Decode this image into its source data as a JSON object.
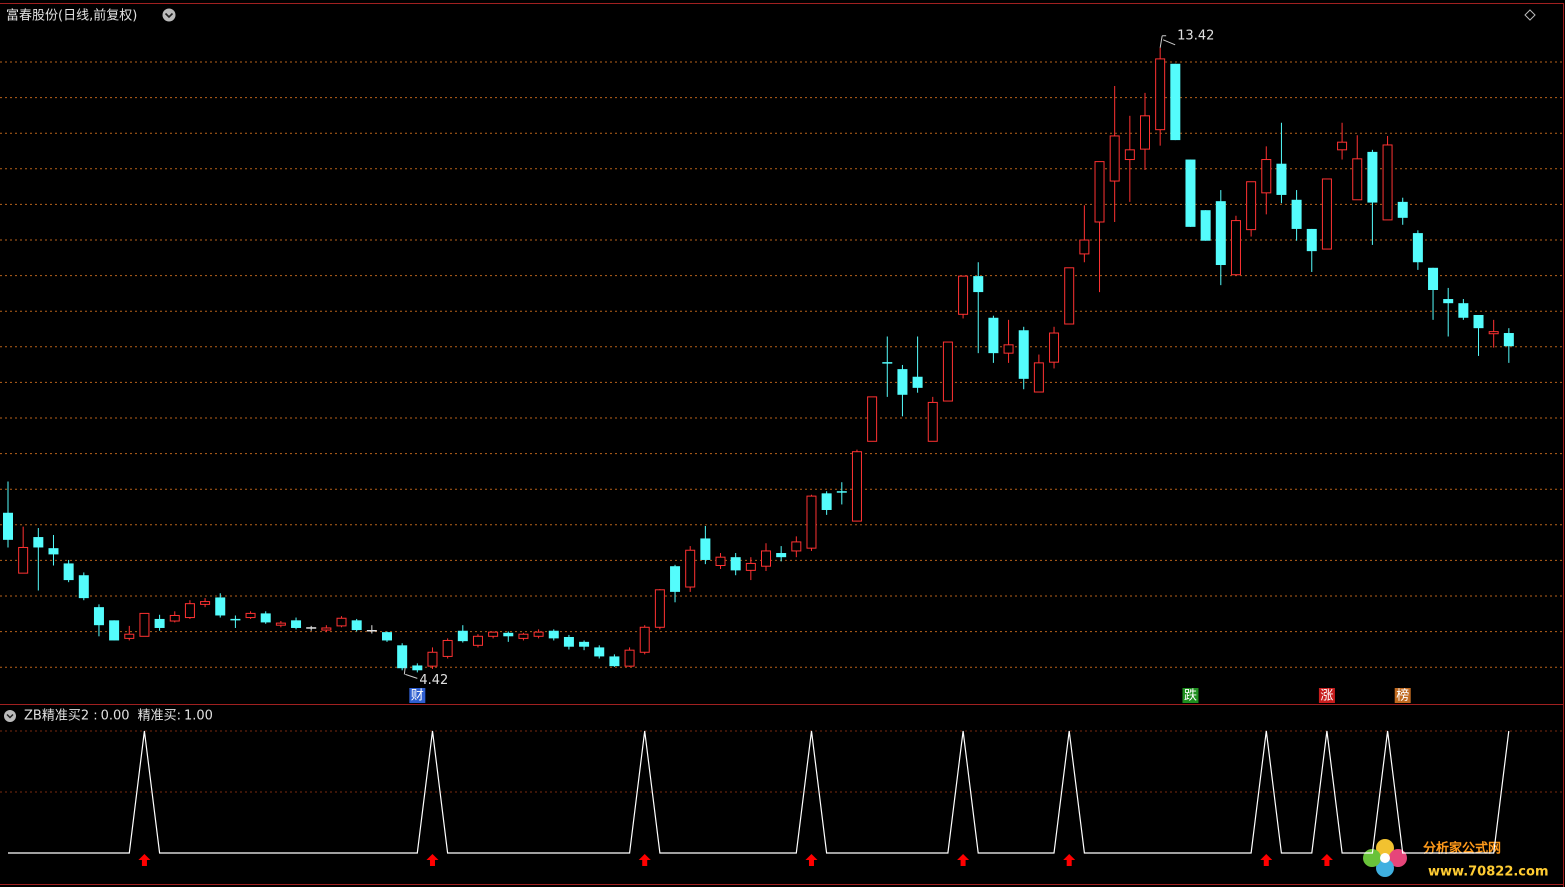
{
  "chart_data": [
    {
      "type": "candlestick",
      "title": "富春股份(日线,前复权)",
      "ylim": [
        3.95,
        14.08
      ],
      "grid": true,
      "up_color": "#ff3232",
      "down_color": "#54fcfc",
      "flat_color": "#e0e0e0",
      "open": [
        6.72,
        5.85,
        6.37,
        6.21,
        5.99,
        5.82,
        5.36,
        5.17,
        4.91,
        4.94,
        5.19,
        5.16,
        5.21,
        5.4,
        5.5,
        5.18,
        5.21,
        5.27,
        5.1,
        5.17,
        5.06,
        5.03,
        5.09,
        5.17,
        5.02,
        5.0,
        4.81,
        4.52,
        4.51,
        4.65,
        5.02,
        4.81,
        4.94,
        4.99,
        4.91,
        4.94,
        5.02,
        4.93,
        4.86,
        4.78,
        4.65,
        4.51,
        4.71,
        5.07,
        5.95,
        5.65,
        6.35,
        5.96,
        6.08,
        5.89,
        5.95,
        6.14,
        6.17,
        6.21,
        7.0,
        7.02,
        6.6,
        7.75,
        8.88,
        8.79,
        8.68,
        7.75,
        8.33,
        9.58,
        10.13,
        9.53,
        9.02,
        9.35,
        8.46,
        8.89,
        9.44,
        10.45,
        10.91,
        11.5,
        11.81,
        11.96,
        12.24,
        13.19,
        11.81,
        11.08,
        11.21,
        10.15,
        10.8,
        11.33,
        11.75,
        11.23,
        10.81,
        10.52,
        11.95,
        11.23,
        11.92,
        10.94,
        11.2,
        10.75,
        10.25,
        9.8,
        9.74,
        9.57,
        9.3,
        9.31
      ],
      "close": [
        6.33,
        6.22,
        6.22,
        6.12,
        5.75,
        5.49,
        5.1,
        4.88,
        4.97,
        5.27,
        5.06,
        5.24,
        5.41,
        5.44,
        5.24,
        5.16,
        5.27,
        5.14,
        5.13,
        5.06,
        5.06,
        5.06,
        5.2,
        5.03,
        5.02,
        4.88,
        4.48,
        4.45,
        4.71,
        4.88,
        4.87,
        4.94,
        5.0,
        4.94,
        4.97,
        5.0,
        4.91,
        4.79,
        4.79,
        4.65,
        4.51,
        4.74,
        5.07,
        5.61,
        5.58,
        6.18,
        6.04,
        6.08,
        5.89,
        5.99,
        6.17,
        6.08,
        6.3,
        6.96,
        6.76,
        7.0,
        7.6,
        8.39,
        8.86,
        8.42,
        8.52,
        8.31,
        9.18,
        10.13,
        9.9,
        9.02,
        9.14,
        8.65,
        8.88,
        9.31,
        10.25,
        10.65,
        11.78,
        12.15,
        11.95,
        12.44,
        13.26,
        12.09,
        10.84,
        10.64,
        10.29,
        10.93,
        11.49,
        11.81,
        11.3,
        10.81,
        10.49,
        11.53,
        12.06,
        11.82,
        11.19,
        12.02,
        10.97,
        10.33,
        9.93,
        9.74,
        9.53,
        9.38,
        9.33,
        9.12
      ],
      "high": [
        7.17,
        6.52,
        6.5,
        6.4,
        6.04,
        5.86,
        5.4,
        5.17,
        5.09,
        5.27,
        5.25,
        5.3,
        5.46,
        5.49,
        5.56,
        5.24,
        5.3,
        5.3,
        5.16,
        5.21,
        5.09,
        5.1,
        5.23,
        5.19,
        5.1,
        5.01,
        4.84,
        4.55,
        4.78,
        4.91,
        5.1,
        4.97,
        5.01,
        5.01,
        4.99,
        5.04,
        5.04,
        4.96,
        4.88,
        4.81,
        4.68,
        4.78,
        5.1,
        5.62,
        5.97,
        6.24,
        6.53,
        6.14,
        6.14,
        6.08,
        6.28,
        6.24,
        6.38,
        6.98,
        7.03,
        7.16,
        7.63,
        8.39,
        9.26,
        8.85,
        9.26,
        8.39,
        9.18,
        10.13,
        10.33,
        9.56,
        9.5,
        9.4,
        9.0,
        9.4,
        10.25,
        11.15,
        11.78,
        12.87,
        12.44,
        12.77,
        13.42,
        13.19,
        11.81,
        11.08,
        11.37,
        11.0,
        11.49,
        12.0,
        12.34,
        11.37,
        10.81,
        11.53,
        12.34,
        12.16,
        11.95,
        12.15,
        11.26,
        10.79,
        10.25,
        9.96,
        9.8,
        9.57,
        9.5,
        9.38
      ],
      "low": [
        6.22,
        5.85,
        5.6,
        5.96,
        5.72,
        5.46,
        4.94,
        4.88,
        4.88,
        4.94,
        5.02,
        5.14,
        5.19,
        5.36,
        5.21,
        5.06,
        5.19,
        5.12,
        5.07,
        5.04,
        5.02,
        5.0,
        5.07,
        5.01,
        4.98,
        4.86,
        4.45,
        4.42,
        4.47,
        4.62,
        4.85,
        4.78,
        4.91,
        4.86,
        4.88,
        4.91,
        4.88,
        4.75,
        4.74,
        4.62,
        4.5,
        4.5,
        4.68,
        5.04,
        5.43,
        5.58,
        5.98,
        5.91,
        5.82,
        5.75,
        5.88,
        6.02,
        6.08,
        6.17,
        6.69,
        6.84,
        6.6,
        7.75,
        8.39,
        8.11,
        8.45,
        7.75,
        8.33,
        9.52,
        9.02,
        8.88,
        8.88,
        8.5,
        8.46,
        8.8,
        9.44,
        10.33,
        9.9,
        10.91,
        11.2,
        11.66,
        12.01,
        12.09,
        10.84,
        10.64,
        10.0,
        10.14,
        10.7,
        11.02,
        11.18,
        10.64,
        10.19,
        10.52,
        11.81,
        11.23,
        10.58,
        10.94,
        10.87,
        10.22,
        9.5,
        9.26,
        9.5,
        8.98,
        9.1,
        8.88
      ],
      "events": [
        {
          "index": 27,
          "label": "财",
          "color": "#2f5fd0"
        },
        {
          "index": 78,
          "label": "跌",
          "color": "#1f8f1f"
        },
        {
          "index": 87,
          "label": "涨",
          "color": "#c81e1e"
        },
        {
          "index": 92,
          "label": "榜",
          "color": "#c06a20"
        }
      ]
    },
    {
      "type": "signal",
      "ylim": [
        0,
        1
      ],
      "readouts": [
        {
          "label": "ZB精准买2 :",
          "value": {
            "value": 0,
            "label": "0.00"
          }
        },
        {
          "label": "精准买:",
          "value": {
            "value": 1,
            "label": "1.00"
          }
        }
      ],
      "line_color": "#ffffff",
      "arrow_color": "#ff0000",
      "line": [
        0,
        0,
        0,
        0,
        0,
        0,
        0,
        0,
        0,
        1,
        0,
        0,
        0,
        0,
        0,
        0,
        0,
        0,
        0,
        0,
        0,
        0,
        0,
        0,
        0,
        0,
        0,
        0,
        1,
        0,
        0,
        0,
        0,
        0,
        0,
        0,
        0,
        0,
        0,
        0,
        0,
        0,
        1,
        0,
        0,
        0,
        0,
        0,
        0,
        0,
        0,
        0,
        0,
        1,
        0,
        0,
        0,
        0,
        0,
        0,
        0,
        0,
        0,
        1,
        0,
        0,
        0,
        0,
        0,
        0,
        1,
        0,
        0,
        0,
        0,
        0,
        0,
        0,
        0,
        0,
        0,
        0,
        0,
        1,
        0,
        0,
        0,
        1,
        0,
        0,
        0,
        1,
        0,
        0,
        0,
        0,
        0,
        0,
        0,
        1
      ],
      "signals": [
        null,
        null,
        null,
        null,
        null,
        null,
        null,
        null,
        null,
        1,
        null,
        null,
        null,
        null,
        null,
        null,
        null,
        null,
        null,
        null,
        null,
        null,
        null,
        null,
        null,
        null,
        null,
        null,
        1,
        null,
        null,
        null,
        null,
        null,
        null,
        null,
        null,
        null,
        null,
        null,
        null,
        null,
        1,
        null,
        null,
        null,
        null,
        null,
        null,
        null,
        null,
        null,
        null,
        1,
        null,
        null,
        null,
        null,
        null,
        null,
        null,
        null,
        null,
        1,
        null,
        null,
        null,
        null,
        null,
        null,
        1,
        null,
        null,
        null,
        null,
        null,
        null,
        null,
        null,
        null,
        null,
        null,
        null,
        1,
        null,
        null,
        null,
        1,
        null,
        null,
        null,
        null,
        null,
        null,
        null,
        null,
        null,
        null,
        null,
        null,
        null,
        null
      ]
    }
  ],
  "watermark": {
    "name": "分析家公式网",
    "url": "www.70822.com"
  }
}
